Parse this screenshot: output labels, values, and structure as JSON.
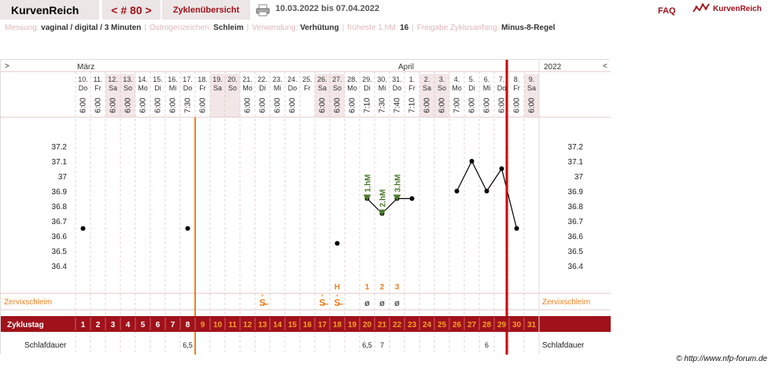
{
  "header": {
    "title": "KurvenReich",
    "cycle_nav": "< # 80 >",
    "overview_link": "Zyklenübersicht",
    "date_range": "10.03.2022 bis 07.04.2022",
    "faq": "FAQ",
    "brand": "KurvenReich"
  },
  "params": [
    {
      "label": "Messung:",
      "value": "vaginal / digital / 3 Minuten"
    },
    {
      "label": "Östrogenzeichen:",
      "value": "Schleim"
    },
    {
      "label": "Verwendung:",
      "value": "Verhütung"
    },
    {
      "label": "früheste 1.hM:",
      "value": "16"
    },
    {
      "label": "Freigabe Zyklusanfang:",
      "value": "Minus-8-Regel"
    }
  ],
  "chart": {
    "nav_left": ">",
    "nav_right": "<",
    "month1": "März",
    "month2": "April",
    "year": "2022",
    "dates": [
      "10.",
      "11.",
      "12.",
      "13.",
      "14.",
      "15.",
      "16.",
      "17.",
      "18.",
      "19.",
      "20.",
      "21.",
      "22.",
      "23.",
      "24.",
      "25.",
      "26.",
      "27.",
      "28.",
      "29.",
      "30.",
      "31.",
      "1.",
      "2.",
      "3.",
      "4.",
      "5.",
      "6.",
      "7.",
      "8.",
      "9."
    ],
    "weekdays": [
      "Do",
      "Fr",
      "Sa",
      "So",
      "Mo",
      "Di",
      "Mi",
      "Do",
      "Fr",
      "Sa",
      "So",
      "Mo",
      "Di",
      "Mi",
      "Do",
      "Fr",
      "Sa",
      "So",
      "Mo",
      "Di",
      "Mi",
      "Do",
      "Fr",
      "Sa",
      "So",
      "Mo",
      "Di",
      "Mi",
      "Do",
      "Fr",
      "Sa"
    ],
    "times": [
      "6:00",
      "6:00",
      "6:00",
      "6:00",
      "6:00",
      "6:00",
      "6:00",
      "7:30",
      "6:00",
      "",
      "",
      "6:00",
      "6:00",
      "6:00",
      "6:00",
      "",
      "6:00",
      "6:00",
      "6:00",
      "7:10",
      "7:30",
      "7:40",
      "7:10",
      "6:00",
      "6:00",
      "7:00",
      "6:00",
      "6:00",
      "6:00",
      "6:00",
      "6:00"
    ],
    "y_labels": [
      "37.2",
      "37.1",
      "37",
      "36.9",
      "36.8",
      "36.7",
      "36.6",
      "36.5",
      "36.4"
    ],
    "temps": [
      36.65,
      null,
      null,
      null,
      null,
      null,
      null,
      36.65,
      null,
      null,
      null,
      null,
      null,
      null,
      null,
      null,
      null,
      36.55,
      null,
      36.85,
      36.75,
      36.85,
      36.85,
      null,
      null,
      36.9,
      37.1,
      36.9,
      37.05,
      36.65,
      null
    ],
    "hm_labels": [
      {
        "day": 19,
        "text": "1.hM"
      },
      {
        "day": 20,
        "text": "2.hM"
      },
      {
        "day": 21,
        "text": "3.hM"
      }
    ],
    "peak_labels": [
      {
        "day": 17,
        "text": "H"
      },
      {
        "day": 19,
        "text": "1"
      },
      {
        "day": 20,
        "text": "2"
      },
      {
        "day": 21,
        "text": "3"
      }
    ],
    "cervix_label": "Zervixschleim",
    "cervix_symbols": [
      {
        "day": 12,
        "text": "S̶"
      },
      {
        "day": 16,
        "text": "S̶"
      },
      {
        "day": 17,
        "text": "S̶"
      },
      {
        "day": 19,
        "text": "ø"
      },
      {
        "day": 20,
        "text": "ø"
      },
      {
        "day": 21,
        "text": "ø"
      }
    ],
    "cycleday_label": "Zyklustag",
    "cycle_days": [
      "1",
      "2",
      "3",
      "4",
      "5",
      "6",
      "7",
      "8",
      "9",
      "10",
      "11",
      "12",
      "13",
      "14",
      "15",
      "16",
      "17",
      "18",
      "19",
      "20",
      "21",
      "22",
      "23",
      "24",
      "25",
      "26",
      "27",
      "28",
      "29",
      "30",
      "31"
    ],
    "sleep_label": "Schlafdauer",
    "sleep_values": [
      {
        "day": 7,
        "text": "6,5"
      },
      {
        "day": 19,
        "text": "6,5"
      },
      {
        "day": 20,
        "text": "7"
      },
      {
        "day": 27,
        "text": "6"
      }
    ],
    "colors": {
      "accent": "#a0111a",
      "orange": "#f08020",
      "hm_green": "#4a7a2a",
      "weekend": "#f3e6e6",
      "red_line": "#cc0000"
    }
  },
  "copyright": "© http://www.nfp-forum.de"
}
